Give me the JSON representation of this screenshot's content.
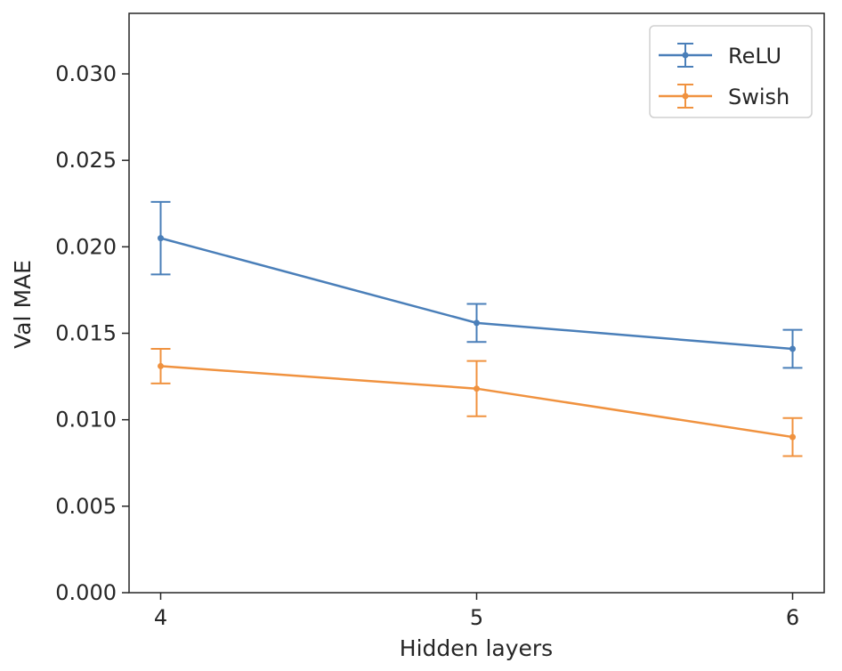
{
  "chart_data": {
    "type": "line",
    "title": "",
    "xlabel": "Hidden layers",
    "ylabel": "Val MAE",
    "x": [
      4,
      5,
      6
    ],
    "x_tick_labels": [
      "4",
      "5",
      "6"
    ],
    "xlim": [
      3.9,
      6.1
    ],
    "ylim": [
      0.0,
      0.0335
    ],
    "y_ticks": [
      0.0,
      0.005,
      0.01,
      0.015,
      0.02,
      0.025,
      0.03
    ],
    "y_tick_labels": [
      "0.000",
      "0.005",
      "0.010",
      "0.015",
      "0.020",
      "0.025",
      "0.030"
    ],
    "grid": false,
    "legend_position": "top-right",
    "series": [
      {
        "name": "ReLU",
        "color": "#4a7fb9",
        "values": [
          0.0205,
          0.0156,
          0.0141
        ],
        "errors": [
          0.0021,
          0.0011,
          0.0011
        ]
      },
      {
        "name": "Swish",
        "color": "#f0923f",
        "values": [
          0.0131,
          0.0118,
          0.009
        ],
        "errors": [
          0.001,
          0.0016,
          0.0011
        ]
      }
    ]
  }
}
